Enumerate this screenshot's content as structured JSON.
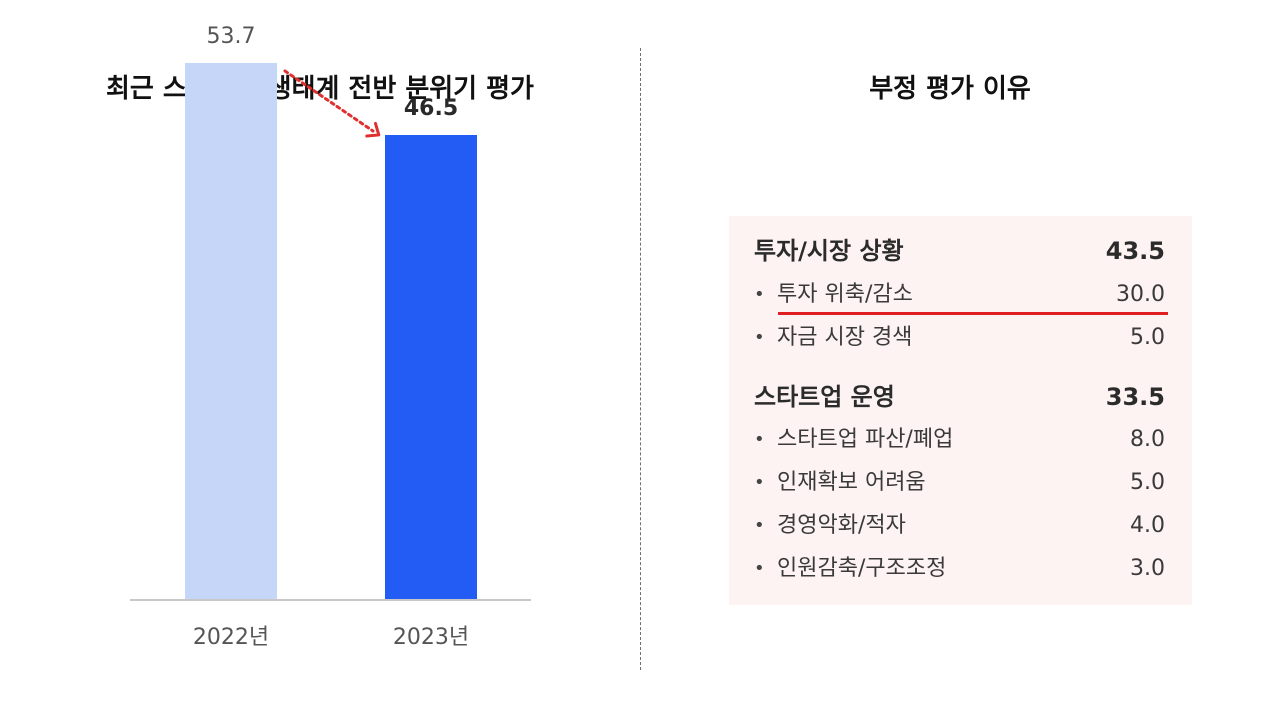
{
  "left_panel": {
    "title": "최근 스타트업 생태계 전반 분위기 평가"
  },
  "right_panel": {
    "title": "부정 평가 이유",
    "groups": [
      {
        "label": "투자/시장 상황",
        "value": "43.5",
        "items": [
          {
            "label": "투자 위축/감소",
            "value": "30.0",
            "highlighted": true
          },
          {
            "label": "자금 시장 경색",
            "value": "5.0"
          }
        ]
      },
      {
        "label": "스타트업 운영",
        "value": "33.5",
        "items": [
          {
            "label": "스타트업 파산/폐업",
            "value": "8.0"
          },
          {
            "label": "인재확보 어려움",
            "value": "5.0"
          },
          {
            "label": "경영악화/적자",
            "value": "4.0"
          },
          {
            "label": "인원감축/구조조정",
            "value": "3.0"
          }
        ]
      }
    ]
  },
  "chart_data": {
    "type": "bar",
    "title": "최근 스타트업 생태계 전반 분위기 평가",
    "categories": [
      "2022년",
      "2023년"
    ],
    "values": [
      53.7,
      46.5
    ],
    "value_labels": [
      "53.7",
      "46.5"
    ],
    "bar_colors": [
      "#c5d6f8",
      "#235bf5"
    ],
    "trend_arrow_color": "#e0302e",
    "xlabel": "",
    "ylabel": "",
    "ylim": [
      0,
      60
    ],
    "grid": false,
    "legend": "none"
  }
}
